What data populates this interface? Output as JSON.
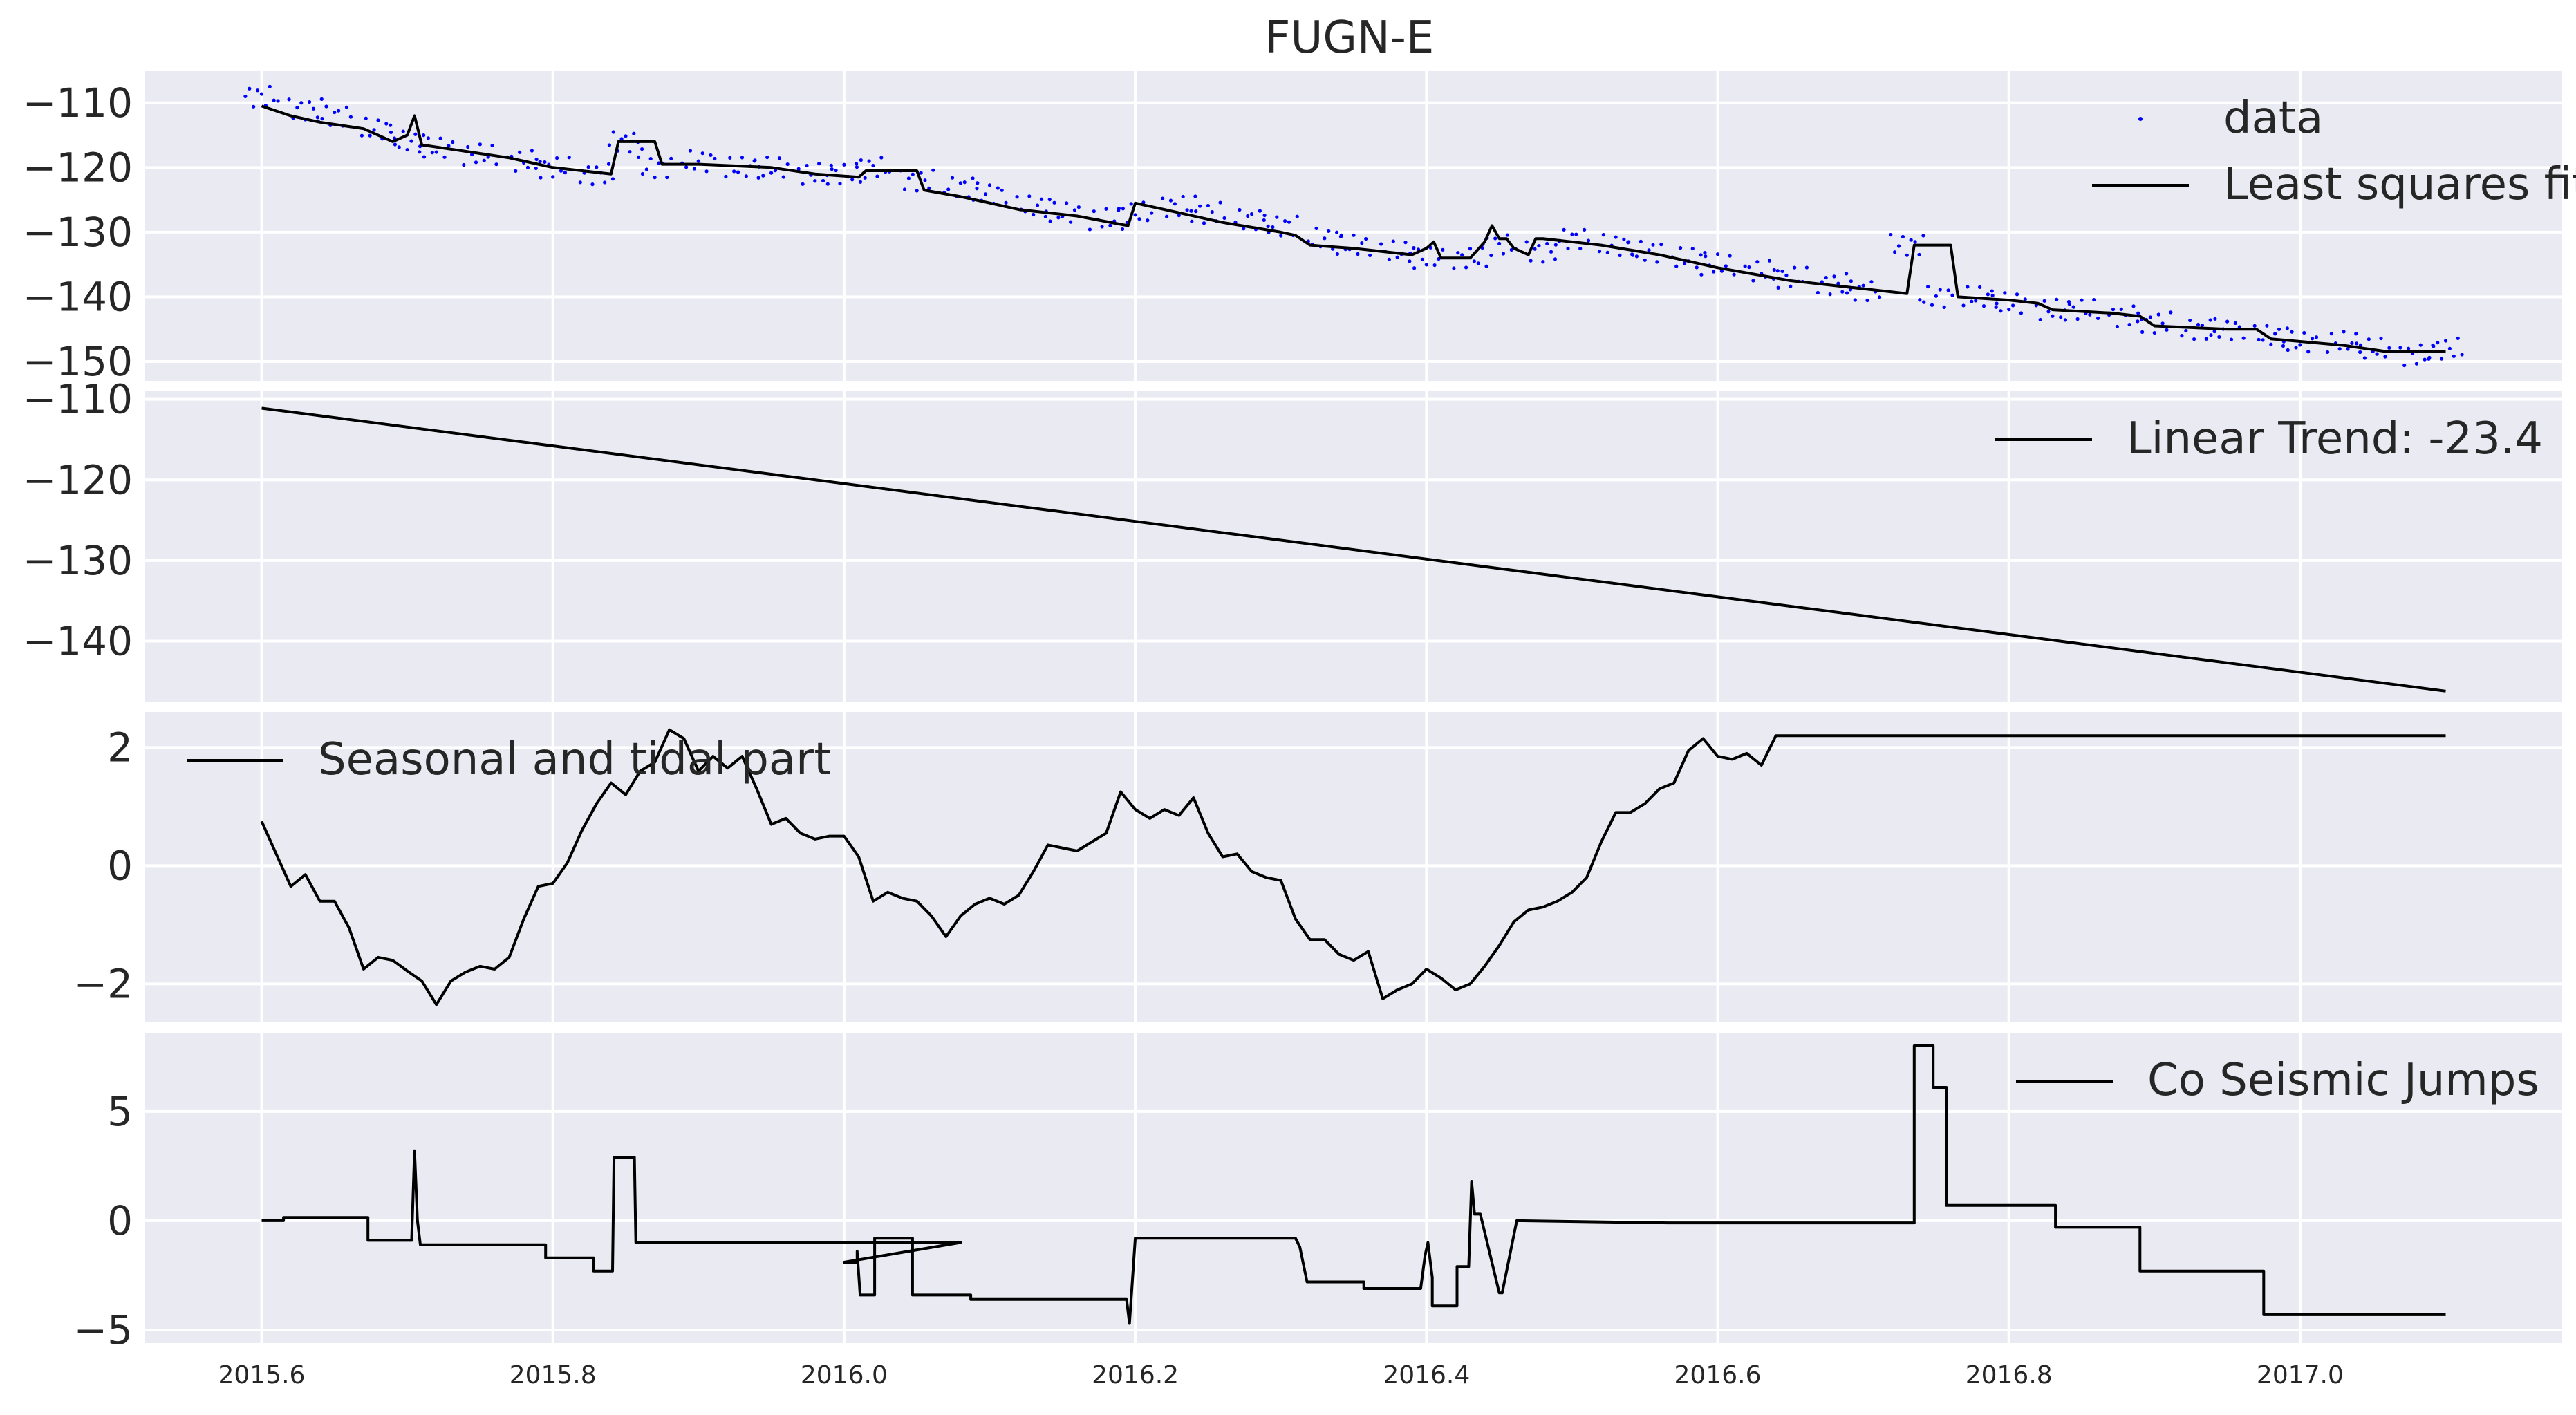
{
  "figure_title": "FUGN-E",
  "chart_data": [
    {
      "type": "line",
      "panel": "data-fit",
      "title": "FUGN-E",
      "xlim": [
        2015.52,
        2017.18
      ],
      "ylim": [
        -153,
        -105
      ],
      "yticks": [
        -110,
        -120,
        -130,
        -140,
        -150
      ],
      "grid": true,
      "legend_position": "top-right",
      "series": [
        {
          "name": "data",
          "style": "dots",
          "color": "#0000ff",
          "x": [
            2015.6,
            2015.63,
            2015.65,
            2015.68,
            2015.7,
            2015.72,
            2015.75,
            2015.78,
            2015.8,
            2015.83,
            2015.85,
            2015.87,
            2015.9,
            2015.93,
            2015.95,
            2015.98,
            2016.0,
            2016.02,
            2016.05,
            2016.08,
            2016.1,
            2016.13,
            2016.15,
            2016.18,
            2016.2,
            2016.23,
            2016.25,
            2016.28,
            2016.3,
            2016.33,
            2016.35,
            2016.38,
            2016.4,
            2016.43,
            2016.45,
            2016.48,
            2016.5,
            2016.53,
            2016.55,
            2016.58,
            2016.6,
            2016.63,
            2016.65,
            2016.68,
            2016.7,
            2016.73,
            2016.75,
            2016.78,
            2016.8,
            2016.83,
            2016.85,
            2016.88,
            2016.9,
            2016.93,
            2016.95,
            2016.98,
            2017.0,
            2017.03,
            2017.05,
            2017.08,
            2017.1
          ],
          "y": [
            -109,
            -111,
            -112,
            -114,
            -116,
            -117,
            -118,
            -119,
            -120,
            -121,
            -116,
            -120,
            -119,
            -120,
            -120,
            -121,
            -121,
            -120,
            -122,
            -123,
            -124,
            -126,
            -127,
            -128,
            -127,
            -126,
            -127,
            -128,
            -129,
            -131,
            -132,
            -133,
            -134,
            -134,
            -132,
            -133,
            -131,
            -132,
            -133,
            -134,
            -135,
            -136,
            -137,
            -138,
            -139,
            -132,
            -140,
            -140,
            -141,
            -142,
            -142,
            -143,
            -144,
            -145,
            -145,
            -146,
            -147,
            -147,
            -148,
            -149,
            -148
          ]
        },
        {
          "name": "Least squares fit",
          "style": "line",
          "color": "#000000",
          "x": [
            2015.6,
            2015.62,
            2015.64,
            2015.67,
            2015.69,
            2015.7,
            2015.705,
            2015.71,
            2015.74,
            2015.77,
            2015.8,
            2015.84,
            2015.845,
            2015.87,
            2015.875,
            2015.9,
            2015.95,
            2015.98,
            2016.01,
            2016.015,
            2016.03,
            2016.05,
            2016.055,
            2016.08,
            2016.12,
            2016.16,
            2016.195,
            2016.2,
            2016.22,
            2016.26,
            2016.3,
            2016.31,
            2016.32,
            2016.35,
            2016.39,
            2016.4,
            2016.405,
            2016.41,
            2016.43,
            2016.44,
            2016.445,
            2016.45,
            2016.455,
            2016.46,
            2016.47,
            2016.475,
            2016.48,
            2016.52,
            2016.56,
            2016.6,
            2016.65,
            2016.69,
            2016.73,
            2016.735,
            2016.75,
            2016.76,
            2016.765,
            2016.8,
            2016.82,
            2016.83,
            2016.87,
            2016.89,
            2016.9,
            2016.95,
            2016.97,
            2016.98,
            2017.03,
            2017.06,
            2017.1
          ],
          "y": [
            -110.5,
            -112,
            -113,
            -114,
            -116,
            -115,
            -112,
            -116.5,
            -117.5,
            -118.5,
            -120,
            -121,
            -116,
            -116,
            -119.5,
            -119.5,
            -120,
            -121,
            -121.5,
            -120.5,
            -120.5,
            -120.5,
            -123.5,
            -124.5,
            -126.5,
            -127.5,
            -129,
            -125.5,
            -126.5,
            -128.5,
            -130,
            -130.5,
            -132,
            -132.5,
            -133.5,
            -132.5,
            -131.5,
            -134,
            -134,
            -131.5,
            -129,
            -131,
            -131,
            -132.5,
            -133.5,
            -131,
            -131,
            -132,
            -133.5,
            -135.5,
            -137.5,
            -138.5,
            -139.5,
            -132,
            -132,
            -132,
            -140,
            -140.5,
            -141,
            -142,
            -142.5,
            -143,
            -144.5,
            -145,
            -145,
            -146.5,
            -147.5,
            -148.5,
            -148.5
          ]
        }
      ]
    },
    {
      "type": "line",
      "panel": "linear-trend",
      "xlim": [
        2015.52,
        2017.18
      ],
      "ylim": [
        -147.5,
        -109
      ],
      "yticks": [
        -110,
        -120,
        -130,
        -140
      ],
      "grid": true,
      "legend_position": "top-right",
      "series": [
        {
          "name": "Linear Trend: -23.4",
          "color": "#000000",
          "x": [
            2015.6,
            2017.1
          ],
          "y": [
            -111.1,
            -146.2
          ]
        }
      ]
    },
    {
      "type": "line",
      "panel": "seasonal",
      "xlim": [
        2015.52,
        2017.18
      ],
      "ylim": [
        -2.65,
        2.6
      ],
      "yticks": [
        2,
        0,
        -2
      ],
      "grid": true,
      "legend_position": "top-left",
      "series": [
        {
          "name": "Seasonal and tidal part",
          "color": "#000000",
          "x": [
            2015.6,
            2015.61,
            2015.62,
            2015.63,
            2015.64,
            2015.65,
            2015.66,
            2015.67,
            2015.68,
            2015.69,
            2015.7,
            2015.71,
            2015.72,
            2015.73,
            2015.74,
            2015.75,
            2015.76,
            2015.77,
            2015.78,
            2015.79,
            2015.8,
            2015.81,
            2015.82,
            2015.83,
            2015.84,
            2015.85,
            2015.86,
            2015.87,
            2015.88,
            2015.89,
            2015.9,
            2015.91,
            2015.92,
            2015.93,
            2015.94,
            2015.95,
            2015.96,
            2015.97,
            2015.98,
            2015.99,
            2016.0,
            2016.01,
            2016.02,
            2016.03,
            2016.04,
            2016.05,
            2016.06,
            2016.07,
            2016.08,
            2016.09,
            2016.1,
            2016.11,
            2016.12,
            2016.13,
            2016.14,
            2016.15,
            2016.16,
            2016.17,
            2016.18,
            2016.19,
            2016.2,
            2016.21,
            2016.22,
            2016.23,
            2016.24,
            2016.25,
            2016.26,
            2016.27,
            2016.28,
            2016.29,
            2016.3,
            2016.31,
            2016.32,
            2016.33,
            2016.34,
            2016.35,
            2016.36,
            2016.37,
            2016.38,
            2016.39,
            2016.4,
            2016.41,
            2016.42,
            2016.43,
            2016.44,
            2016.45,
            2016.46,
            2016.47,
            2016.48,
            2016.49,
            2016.5,
            2016.51,
            2016.52,
            2016.53,
            2016.54,
            2016.55,
            2016.56,
            2016.57,
            2016.58,
            2016.59,
            2016.6,
            2016.61,
            2016.62,
            2016.63,
            2016.64,
            2016.65,
            2016.66,
            2016.67,
            2016.68,
            2016.69,
            2016.7,
            2016.71,
            2016.72,
            2016.73,
            2016.74,
            2016.75,
            2016.76,
            2016.77,
            2016.78,
            2016.79,
            2016.8,
            2016.81,
            2016.82,
            2016.83,
            2016.84,
            2016.85,
            2016.86,
            2016.87,
            2016.88,
            2016.89,
            2016.9,
            2016.91,
            2016.92,
            2016.93,
            2016.94,
            2016.95,
            2016.96,
            2016.97,
            2016.98,
            2016.99,
            2017.0,
            2017.01,
            2017.02,
            2017.03,
            2017.04,
            2017.05,
            2017.06,
            2017.07,
            2017.08,
            2017.09,
            2017.1
          ],
          "y": [
            0.75,
            0.2,
            -0.35,
            -0.15,
            -0.6,
            -0.6,
            -1.05,
            -1.75,
            -1.55,
            -1.6,
            -1.78,
            -1.95,
            -2.35,
            -1.95,
            -1.8,
            -1.7,
            -1.75,
            -1.55,
            -0.9,
            -0.35,
            -0.3,
            0.05,
            0.6,
            1.05,
            1.4,
            1.2,
            1.6,
            1.75,
            2.3,
            2.15,
            1.6,
            1.85,
            1.65,
            1.85,
            1.3,
            0.7,
            0.8,
            0.55,
            0.45,
            0.5,
            0.5,
            0.15,
            -0.6,
            -0.45,
            -0.55,
            -0.6,
            -0.85,
            -1.2,
            -0.85,
            -0.65,
            -0.55,
            -0.65,
            -0.5,
            -0.1,
            0.35,
            0.3,
            0.25,
            0.4,
            0.55,
            1.25,
            0.95,
            0.8,
            0.95,
            0.85,
            1.15,
            0.55,
            0.15,
            0.2,
            -0.1,
            -0.2,
            -0.25,
            -0.9,
            -1.25,
            -1.25,
            -1.5,
            -1.6,
            -1.45,
            -2.25,
            -2.1,
            -2.0,
            -1.75,
            -1.9,
            -2.1,
            -2.0,
            -1.7,
            -1.35,
            -0.95,
            -0.75,
            -0.7,
            -0.6,
            -0.45,
            -0.2,
            0.4,
            0.9,
            0.9,
            1.05,
            1.3,
            1.4,
            1.95,
            2.15,
            1.85,
            1.8,
            1.9,
            1.7,
            2.2,
            2.2,
            2.2,
            2.2,
            2.2,
            2.2,
            2.2,
            2.2,
            2.2,
            2.2,
            2.2,
            2.2,
            2.2,
            2.2,
            2.2,
            2.2,
            2.2,
            2.2,
            2.2,
            2.2,
            2.2,
            2.2,
            2.2,
            2.2,
            2.2,
            2.2,
            2.2,
            2.2,
            2.2,
            2.2,
            2.2,
            2.2,
            2.2,
            2.2,
            2.2,
            2.2,
            2.2,
            2.2,
            2.2,
            2.2,
            2.2,
            2.2,
            2.2,
            2.2,
            2.2,
            2.2,
            2.2
          ]
        }
      ]
    },
    {
      "type": "line",
      "panel": "jumps",
      "xlim": [
        2015.52,
        2017.18
      ],
      "xticks": [
        2015.6,
        2015.8,
        2016.0,
        2016.2,
        2016.4,
        2016.6,
        2016.8,
        2017.0
      ],
      "xticklabels": [
        "2015.6",
        "2015.8",
        "2016.0",
        "2016.2",
        "2016.4",
        "2016.6",
        "2016.8",
        "2017.0"
      ],
      "ylim": [
        -5.6,
        8.6
      ],
      "yticks": [
        5,
        0,
        -5
      ],
      "grid": true,
      "legend_position": "top-right",
      "series": [
        {
          "name": "Co Seismic Jumps",
          "color": "#000000",
          "x": [
            2015.6,
            2015.615,
            2015.615,
            2015.673,
            2015.673,
            2015.703,
            2015.705,
            2015.707,
            2015.709,
            2015.795,
            2015.795,
            2015.828,
            2015.828,
            2015.841,
            2015.842,
            2015.856,
            2015.857,
            2016.08,
            2016.0,
            2016.009,
            2016.009,
            2016.011,
            2016.021,
            2016.021,
            2016.047,
            2016.047,
            2016.087,
            2016.087,
            2016.194,
            2016.196,
            2016.2,
            2016.2,
            2016.31,
            2016.313,
            2016.318,
            2016.357,
            2016.357,
            2016.396,
            2016.399,
            2016.401,
            2016.404,
            2016.404,
            2016.421,
            2016.421,
            2016.429,
            2016.431,
            2016.433,
            2016.437,
            2016.45,
            2016.452,
            2016.462,
            2016.462,
            2016.566,
            2016.735,
            2016.735,
            2016.748,
            2016.748,
            2016.757,
            2016.757,
            2016.832,
            2016.832,
            2016.89,
            2016.89,
            2016.975,
            2016.975,
            2017.1
          ],
          "y": [
            0,
            0,
            0.15,
            0.15,
            -0.9,
            -0.9,
            3.2,
            0,
            -1.1,
            -1.1,
            -1.7,
            -1.7,
            -2.3,
            -2.3,
            2.9,
            2.9,
            -1.0,
            -1.0,
            -1.9,
            -1.9,
            -1.4,
            -3.4,
            -3.4,
            -0.8,
            -0.8,
            -3.4,
            -3.4,
            -3.6,
            -3.6,
            -4.7,
            -0.8,
            -0.8,
            -0.8,
            -1.2,
            -2.8,
            -2.8,
            -3.1,
            -3.1,
            -1.6,
            -1.0,
            -2.6,
            -3.9,
            -3.9,
            -2.1,
            -2.1,
            1.8,
            0.3,
            0.3,
            -3.3,
            -3.3,
            0.0,
            0.0,
            -0.1,
            -0.1,
            8.0,
            8.0,
            6.1,
            6.1,
            0.7,
            0.7,
            -0.3,
            -0.3,
            -2.3,
            -2.3,
            -4.3,
            -4.3
          ]
        }
      ]
    }
  ]
}
